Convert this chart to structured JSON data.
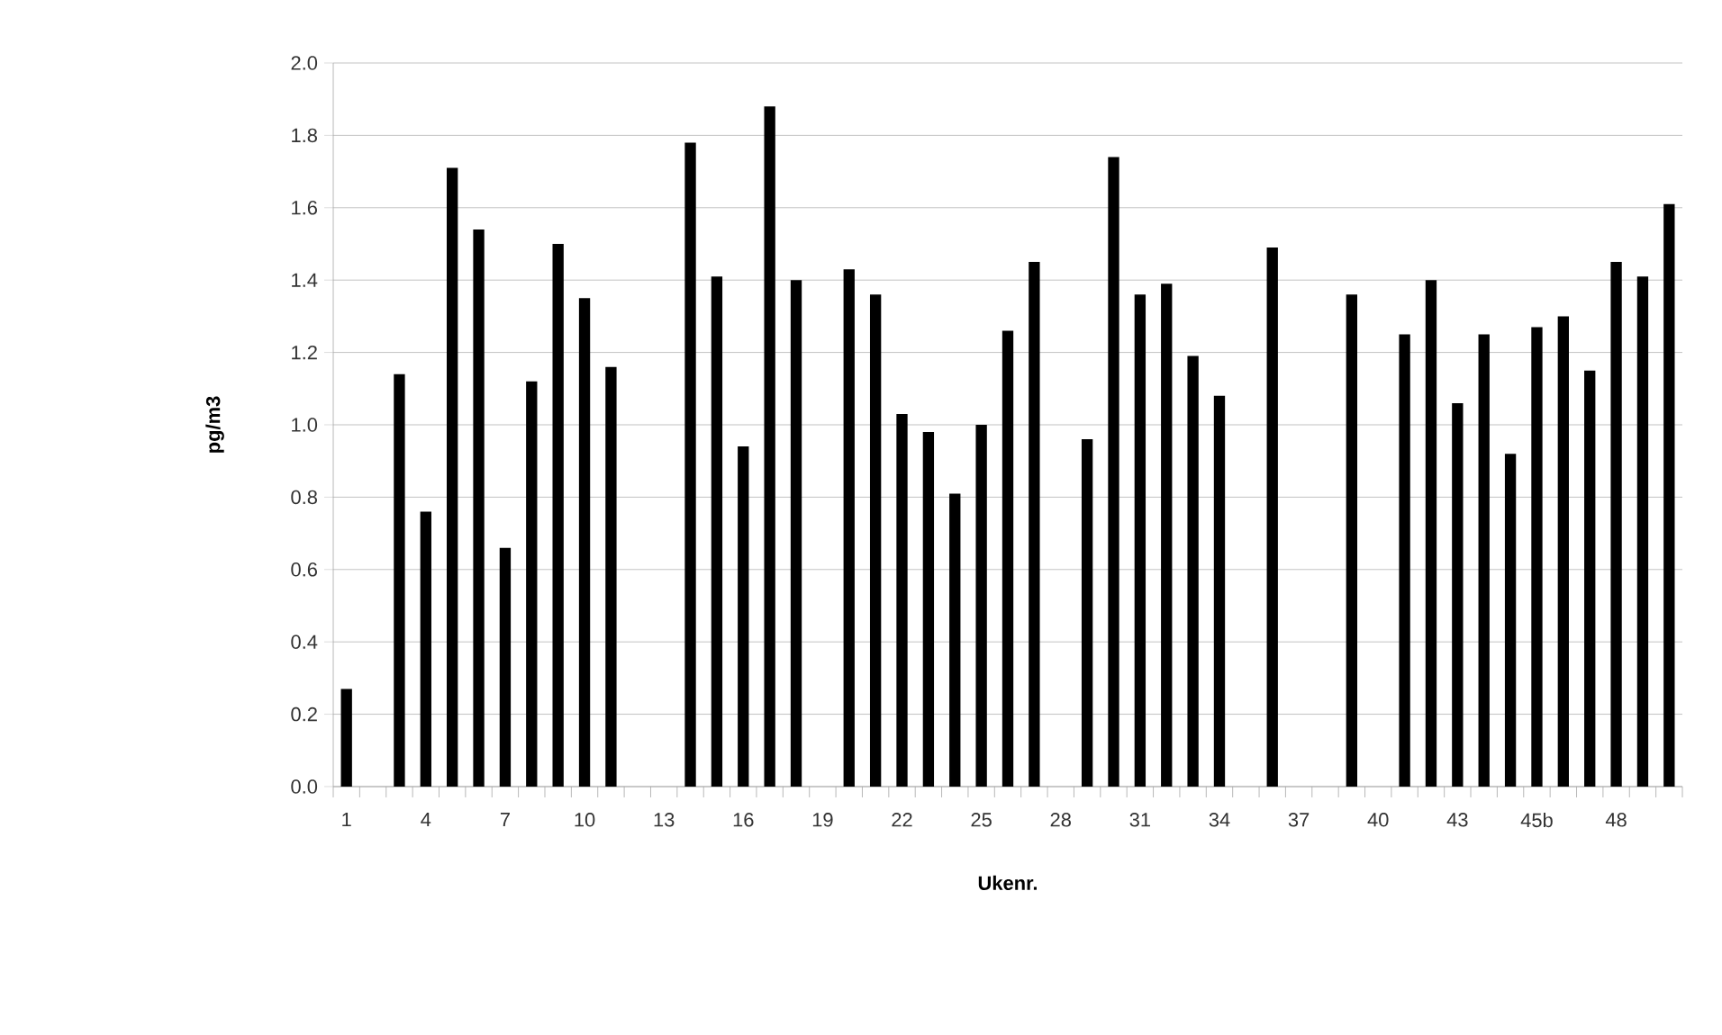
{
  "chart_data": {
    "type": "bar",
    "xlabel": "Ukenr.",
    "ylabel": "pg/m3",
    "categories": [
      "1",
      null,
      null,
      "4",
      null,
      null,
      "7",
      null,
      null,
      "10",
      null,
      null,
      "13",
      null,
      null,
      "16",
      null,
      null,
      "19",
      null,
      null,
      "22",
      null,
      null,
      "25",
      null,
      null,
      "28",
      null,
      null,
      "31",
      null,
      null,
      "34",
      null,
      null,
      "37",
      null,
      null,
      "40",
      null,
      null,
      "43",
      null,
      null,
      "45b",
      null,
      null,
      "48",
      null,
      null
    ],
    "values": [
      0.27,
      null,
      1.14,
      0.76,
      1.71,
      1.54,
      0.66,
      1.12,
      1.5,
      1.35,
      1.16,
      null,
      null,
      1.78,
      1.41,
      0.94,
      1.88,
      1.4,
      null,
      1.43,
      1.36,
      1.03,
      0.98,
      0.81,
      1.0,
      1.26,
      1.45,
      null,
      0.96,
      1.74,
      1.36,
      1.39,
      1.19,
      1.08,
      null,
      1.49,
      null,
      null,
      1.36,
      null,
      1.25,
      1.4,
      1.06,
      1.25,
      0.92,
      1.27,
      1.3,
      1.15,
      1.45,
      1.41,
      1.61
    ],
    "color": "#000000",
    "ylim": [
      0,
      2.0
    ],
    "yticks": [
      {
        "value": 0,
        "label": "0.0"
      },
      {
        "value": 0.2,
        "label": "0.2"
      },
      {
        "value": 0.4,
        "label": "0.4"
      },
      {
        "value": 0.6,
        "label": "0.6"
      },
      {
        "value": 0.8,
        "label": "0.8"
      },
      {
        "value": 1.0,
        "label": "1.0"
      },
      {
        "value": 1.2,
        "label": "1.2"
      },
      {
        "value": 1.4,
        "label": "1.4"
      },
      {
        "value": 1.6,
        "label": "1.6"
      },
      {
        "value": 1.8,
        "label": "1.8"
      },
      {
        "value": 2.0,
        "label": "2.0"
      }
    ],
    "grid": "y"
  }
}
